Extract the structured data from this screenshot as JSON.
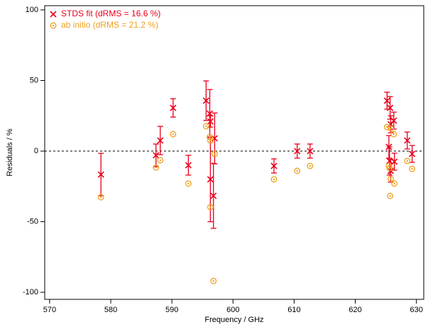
{
  "chart_data": {
    "type": "scatter",
    "x_label": "Frequency / GHz",
    "y_label": "Residuals / %",
    "xlim": [
      569.2,
      631.2
    ],
    "ylim": [
      -105,
      103
    ],
    "xticks": [
      570,
      580,
      590,
      600,
      610,
      620,
      630
    ],
    "yticks": [
      -100,
      -50,
      0,
      50,
      100
    ],
    "reference_line": 0,
    "legend": "upper left",
    "series": [
      {
        "name": "STDS fit (dRMS = 16.6 %)",
        "color": "#e8001c",
        "marker": "x",
        "x": [
          578.4,
          587.4,
          588.1,
          590.2,
          592.7,
          595.6,
          596.2,
          596.3,
          596.3,
          596.8,
          597.0,
          606.7,
          610.5,
          612.6,
          625.2,
          625.5,
          625.6,
          625.7,
          625.8,
          625.8,
          626.3,
          626.4,
          628.5,
          629.3
        ],
        "values": [
          -16.6,
          -3,
          7.5,
          30.6,
          -10,
          35.7,
          26.6,
          21,
          -20,
          -31.7,
          9,
          -10.5,
          0,
          0,
          35.7,
          3,
          -7,
          30.6,
          -14,
          19,
          21.6,
          -7.5,
          7.5,
          -2
        ],
        "errors": [
          15,
          8,
          10,
          6.5,
          7,
          14,
          17,
          4,
          30,
          23,
          18,
          5,
          5,
          5,
          6,
          8,
          10,
          8,
          8,
          6,
          6,
          6,
          6,
          6
        ]
      },
      {
        "name": "ab initio (dRMS = 21.2 %)",
        "color": "#f0a020",
        "marker": "circle-dot",
        "x": [
          578.4,
          587.4,
          588.1,
          590.2,
          592.7,
          595.6,
          596.2,
          596.3,
          596.3,
          596.8,
          597.0,
          606.7,
          610.5,
          612.6,
          625.2,
          625.5,
          625.6,
          625.7,
          625.8,
          625.8,
          626.3,
          626.4,
          628.5,
          629.3
        ],
        "values": [
          -32.7,
          -11.6,
          -6.5,
          12,
          -23,
          17.6,
          10,
          7.5,
          -39.7,
          -92,
          -2,
          -20,
          -14,
          -10.5,
          17,
          -10.5,
          -12,
          -31.7,
          -19.6,
          16,
          12,
          -23,
          -7,
          -12.6
        ]
      }
    ]
  }
}
